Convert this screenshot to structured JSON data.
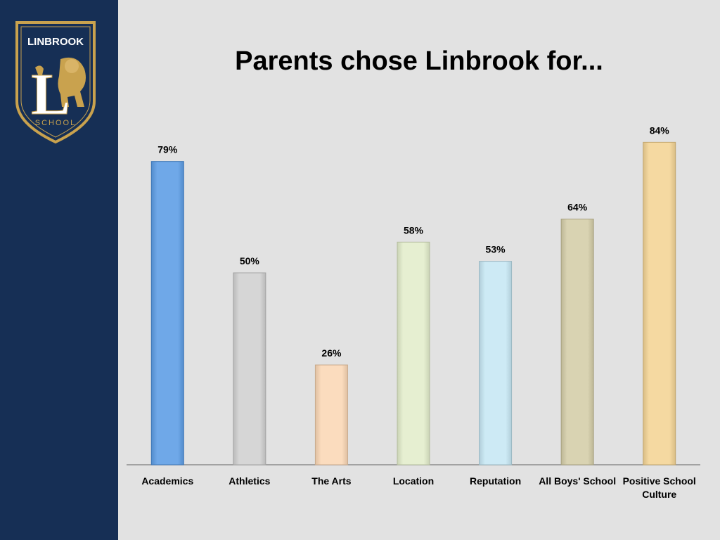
{
  "logo": {
    "top_text": "LINBROOK",
    "letter": "L",
    "bottom_text": "SCHOOL"
  },
  "colors": {
    "sidebar": "#162f55",
    "crest_gold": "#c9a24e",
    "background": "#e2e2e2"
  },
  "chart_data": {
    "type": "bar",
    "title": "Parents chose Linbrook for...",
    "xlabel": "",
    "ylabel": "",
    "ylim": [
      0,
      100
    ],
    "grid": false,
    "value_suffix": "%",
    "categories": [
      [
        "Academics"
      ],
      [
        "Athletics"
      ],
      [
        "The Arts"
      ],
      [
        "Location"
      ],
      [
        "Reputation"
      ],
      [
        "All Boys' School"
      ],
      [
        "Positive School",
        "Culture"
      ]
    ],
    "values": [
      79,
      50,
      26,
      58,
      53,
      64,
      84
    ],
    "value_labels": [
      "79%",
      "50%",
      "26%",
      "58%",
      "53%",
      "64%",
      "84%"
    ],
    "bar_colors": [
      "#6fa8e8",
      "#d6d6d6",
      "#fbdcbe",
      "#e6efd1",
      "#cdeaf5",
      "#d9d3b2",
      "#f5d9a1"
    ]
  }
}
